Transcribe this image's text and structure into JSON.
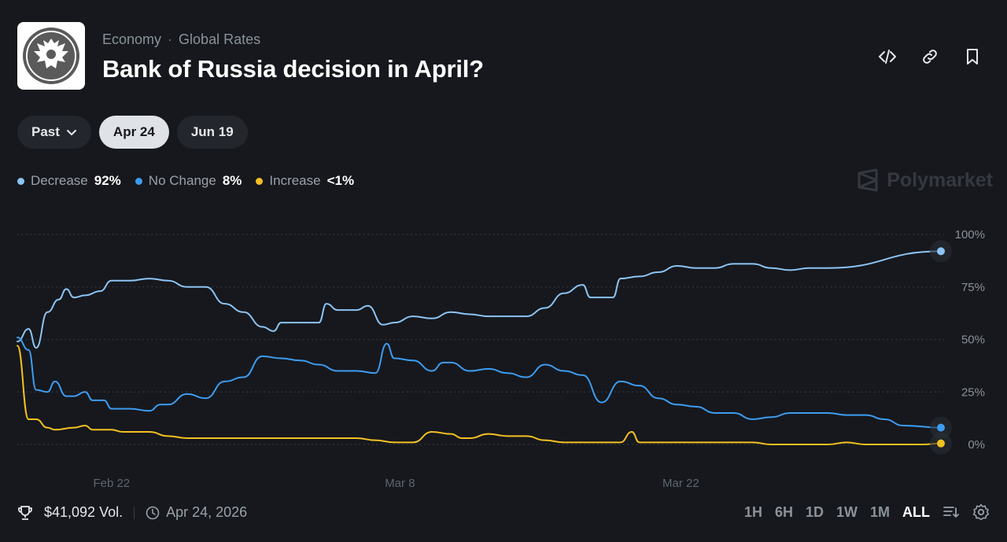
{
  "header": {
    "category": "Economy",
    "subcategory": "Global Rates",
    "title": "Bank of Russia decision in April?"
  },
  "icons": {
    "logo": "bank-of-russia-eagle-logo",
    "embed": "code-icon",
    "link": "link-icon",
    "bookmark": "bookmark-icon"
  },
  "date_pills": [
    {
      "label": "Past",
      "active": false,
      "has_chevron": true
    },
    {
      "label": "Apr 24",
      "active": true
    },
    {
      "label": "Jun 19",
      "active": false
    }
  ],
  "legend": [
    {
      "name": "Decrease",
      "value": "92%",
      "color": "#8cc4f5"
    },
    {
      "name": "No Change",
      "value": "8%",
      "color": "#3d9cf0"
    },
    {
      "name": "Increase",
      "value": "<1%",
      "color": "#f4c021"
    }
  ],
  "watermark": "Polymarket",
  "footer": {
    "volume": "$41,092 Vol.",
    "date": "Apr 24, 2026"
  },
  "time_ranges": [
    {
      "label": "1H",
      "active": false
    },
    {
      "label": "6H",
      "active": false
    },
    {
      "label": "1D",
      "active": false
    },
    {
      "label": "1W",
      "active": false
    },
    {
      "label": "1M",
      "active": false
    },
    {
      "label": "ALL",
      "active": true
    }
  ],
  "chart_data": {
    "type": "line",
    "y_ticks": [
      "100%",
      "75%",
      "50%",
      "25%",
      "0%"
    ],
    "x_ticks": [
      "Feb 22",
      "Mar 8",
      "Mar 22"
    ],
    "ylim": [
      0,
      100
    ],
    "grid": true,
    "series": [
      {
        "name": "Decrease",
        "color": "#8cc4f5",
        "points": [
          [
            0,
            49
          ],
          [
            0.6,
            55
          ],
          [
            1,
            46
          ],
          [
            1.6,
            63
          ],
          [
            2.2,
            69
          ],
          [
            2.6,
            74
          ],
          [
            3,
            70
          ],
          [
            3.6,
            71
          ],
          [
            4.4,
            73
          ],
          [
            5,
            78
          ],
          [
            6,
            78
          ],
          [
            7,
            79
          ],
          [
            8,
            78
          ],
          [
            9,
            75
          ],
          [
            10,
            75
          ],
          [
            11,
            67
          ],
          [
            12,
            63
          ],
          [
            13,
            56
          ],
          [
            13.6,
            54
          ],
          [
            14,
            58
          ],
          [
            15,
            58
          ],
          [
            16,
            58
          ],
          [
            16.4,
            67
          ],
          [
            17,
            64
          ],
          [
            18,
            64
          ],
          [
            18.6,
            66
          ],
          [
            19.4,
            57
          ],
          [
            20,
            58
          ],
          [
            21,
            61
          ],
          [
            22,
            60
          ],
          [
            23,
            63
          ],
          [
            24,
            62
          ],
          [
            25,
            61
          ],
          [
            26,
            61
          ],
          [
            27,
            61
          ],
          [
            28,
            65
          ],
          [
            29,
            72
          ],
          [
            30,
            76
          ],
          [
            30.4,
            70
          ],
          [
            31.6,
            70
          ],
          [
            32,
            79
          ],
          [
            33,
            80
          ],
          [
            34,
            82
          ],
          [
            35,
            85
          ],
          [
            36,
            84
          ],
          [
            37,
            84
          ],
          [
            38,
            86
          ],
          [
            39,
            86
          ],
          [
            40,
            84
          ],
          [
            41,
            83
          ],
          [
            42,
            84
          ],
          [
            43,
            84
          ],
          [
            49,
            92
          ]
        ]
      },
      {
        "name": "No Change",
        "color": "#3d9cf0",
        "points": [
          [
            0,
            51
          ],
          [
            0.6,
            45
          ],
          [
            1,
            26
          ],
          [
            1.6,
            25
          ],
          [
            2,
            30
          ],
          [
            2.6,
            23
          ],
          [
            3,
            23
          ],
          [
            3.6,
            25
          ],
          [
            4,
            21
          ],
          [
            4.6,
            21
          ],
          [
            5,
            17
          ],
          [
            6,
            17
          ],
          [
            7,
            16
          ],
          [
            7.6,
            19
          ],
          [
            8,
            19
          ],
          [
            9,
            24
          ],
          [
            10,
            22
          ],
          [
            11,
            30
          ],
          [
            12,
            32
          ],
          [
            13,
            42
          ],
          [
            14,
            41
          ],
          [
            15,
            40
          ],
          [
            16,
            38
          ],
          [
            17,
            35
          ],
          [
            18,
            35
          ],
          [
            19,
            34
          ],
          [
            19.6,
            48
          ],
          [
            20,
            41
          ],
          [
            21,
            40
          ],
          [
            22,
            35
          ],
          [
            22.6,
            39
          ],
          [
            23,
            39
          ],
          [
            24,
            35
          ],
          [
            25,
            36
          ],
          [
            26,
            34
          ],
          [
            27,
            32
          ],
          [
            28,
            38
          ],
          [
            29,
            35
          ],
          [
            30,
            33
          ],
          [
            31,
            20
          ],
          [
            32,
            30
          ],
          [
            33,
            28
          ],
          [
            34,
            22
          ],
          [
            35,
            19
          ],
          [
            36,
            18
          ],
          [
            37,
            15
          ],
          [
            38,
            15
          ],
          [
            39,
            12
          ],
          [
            40,
            13
          ],
          [
            41,
            15
          ],
          [
            42,
            15
          ],
          [
            43,
            15
          ],
          [
            44,
            14
          ],
          [
            45,
            14
          ],
          [
            46,
            12
          ],
          [
            47,
            9
          ],
          [
            49,
            8
          ]
        ]
      },
      {
        "name": "Increase",
        "color": "#f4c021",
        "points": [
          [
            0,
            47
          ],
          [
            0.6,
            12
          ],
          [
            1,
            12
          ],
          [
            1.6,
            8
          ],
          [
            2,
            7
          ],
          [
            3,
            8
          ],
          [
            3.6,
            9
          ],
          [
            4,
            7
          ],
          [
            5,
            7
          ],
          [
            5.6,
            6
          ],
          [
            6,
            6
          ],
          [
            7,
            6
          ],
          [
            8,
            4
          ],
          [
            9,
            3
          ],
          [
            10,
            3
          ],
          [
            11,
            3
          ],
          [
            12,
            3
          ],
          [
            13,
            3
          ],
          [
            14,
            3
          ],
          [
            15,
            3
          ],
          [
            16,
            3
          ],
          [
            17,
            3
          ],
          [
            18,
            3
          ],
          [
            19,
            2
          ],
          [
            20,
            1
          ],
          [
            21,
            1
          ],
          [
            22,
            6
          ],
          [
            23,
            5
          ],
          [
            23.6,
            3
          ],
          [
            24,
            3
          ],
          [
            25,
            5
          ],
          [
            26,
            4
          ],
          [
            27,
            4
          ],
          [
            28,
            2
          ],
          [
            29,
            1
          ],
          [
            30,
            1
          ],
          [
            31,
            1
          ],
          [
            32,
            1
          ],
          [
            32.6,
            6
          ],
          [
            33,
            1
          ],
          [
            34,
            1
          ],
          [
            35,
            1
          ],
          [
            36,
            1
          ],
          [
            37,
            1
          ],
          [
            38,
            1
          ],
          [
            39,
            1
          ],
          [
            40,
            0
          ],
          [
            41,
            0
          ],
          [
            42,
            0
          ],
          [
            43,
            0
          ],
          [
            44,
            1
          ],
          [
            45,
            0
          ],
          [
            46,
            0
          ],
          [
            47,
            0
          ],
          [
            48,
            0
          ],
          [
            49,
            0.5
          ]
        ]
      }
    ]
  }
}
